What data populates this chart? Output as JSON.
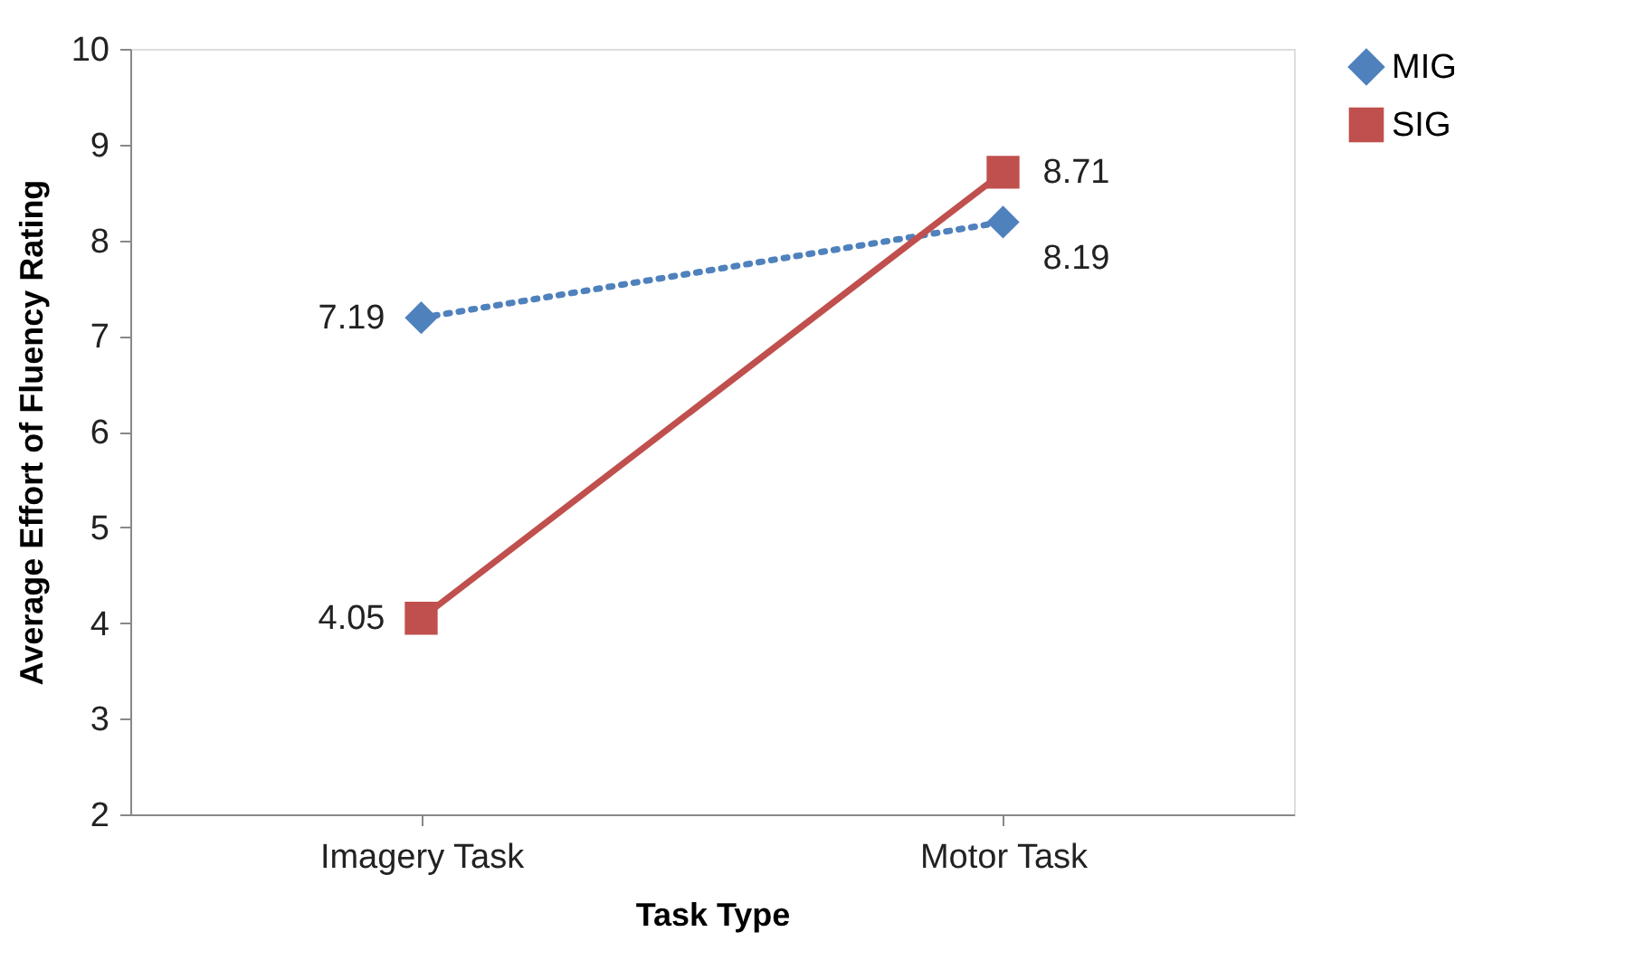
{
  "chart_data": {
    "type": "line",
    "xlabel": "Task Type",
    "ylabel": "Average Effort of Fluency Rating",
    "categories": [
      "Imagery Task",
      "Motor Task"
    ],
    "series": [
      {
        "name": "MIG",
        "color": "#4f81bd",
        "values": [
          7.19,
          8.19
        ],
        "marker": "diamond",
        "line_style": "dotted"
      },
      {
        "name": "SIG",
        "color": "#c0504d",
        "values": [
          4.05,
          8.71
        ],
        "marker": "square",
        "line_style": "solid"
      }
    ],
    "ylim": [
      2,
      10
    ],
    "yticks": [
      2,
      3,
      4,
      5,
      6,
      7,
      8,
      9,
      10
    ],
    "grid": false,
    "legend": "right",
    "data_labels": true
  }
}
